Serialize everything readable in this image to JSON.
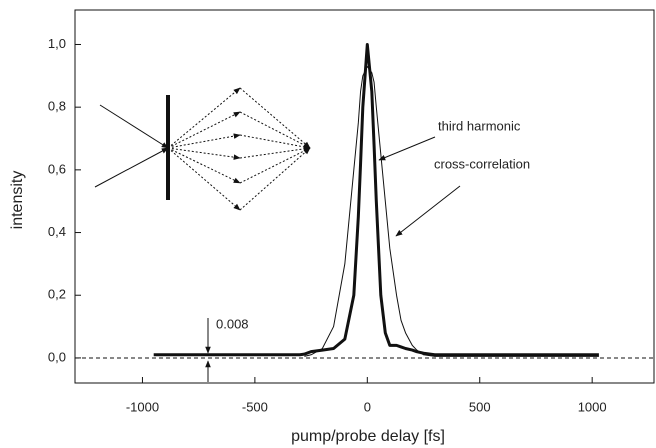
{
  "chart_data": {
    "type": "line",
    "x_label": "pump/probe delay [fs]",
    "y_label": "intensity",
    "x": [
      -950,
      -300,
      -280,
      -250,
      -200,
      -150,
      -100,
      -60,
      -40,
      -30,
      -20,
      0,
      20,
      30,
      40,
      60,
      80,
      100,
      130,
      150,
      170,
      200,
      220,
      250,
      300,
      1030
    ],
    "series": [
      {
        "name": "third harmonic",
        "color": "#111111",
        "line_width": 3,
        "values": [
          0.01,
          0.01,
          0.012,
          0.02,
          0.025,
          0.03,
          0.06,
          0.2,
          0.45,
          0.62,
          0.8,
          1.0,
          0.85,
          0.68,
          0.5,
          0.2,
          0.08,
          0.04,
          0.04,
          0.035,
          0.03,
          0.025,
          0.02,
          0.015,
          0.01,
          0.01
        ]
      },
      {
        "name": "cross-correlation",
        "color": "#111111",
        "line_width": 1,
        "values": [
          null,
          null,
          0.005,
          0.01,
          0.03,
          0.1,
          0.3,
          0.6,
          0.75,
          0.85,
          0.9,
          0.93,
          0.91,
          0.88,
          0.8,
          0.65,
          0.5,
          0.35,
          0.2,
          0.12,
          0.08,
          0.04,
          0.025,
          0.01,
          0.005,
          0.005
        ]
      }
    ],
    "annotation": "0.008",
    "xlim": [
      -1300,
      1275
    ],
    "ylim": [
      -0.08,
      1.11
    ],
    "xticks": [
      -1000,
      -500,
      0,
      500,
      1000
    ],
    "yticks": [
      {
        "value": 0,
        "label": "0,0"
      },
      {
        "value": 0.2,
        "label": "0,2"
      },
      {
        "value": 0.4,
        "label": "0,4"
      },
      {
        "value": 0.6,
        "label": "0,6"
      },
      {
        "value": 0.8,
        "label": "0,8"
      },
      {
        "value": 1,
        "label": "1,0"
      }
    ],
    "grid": false
  }
}
